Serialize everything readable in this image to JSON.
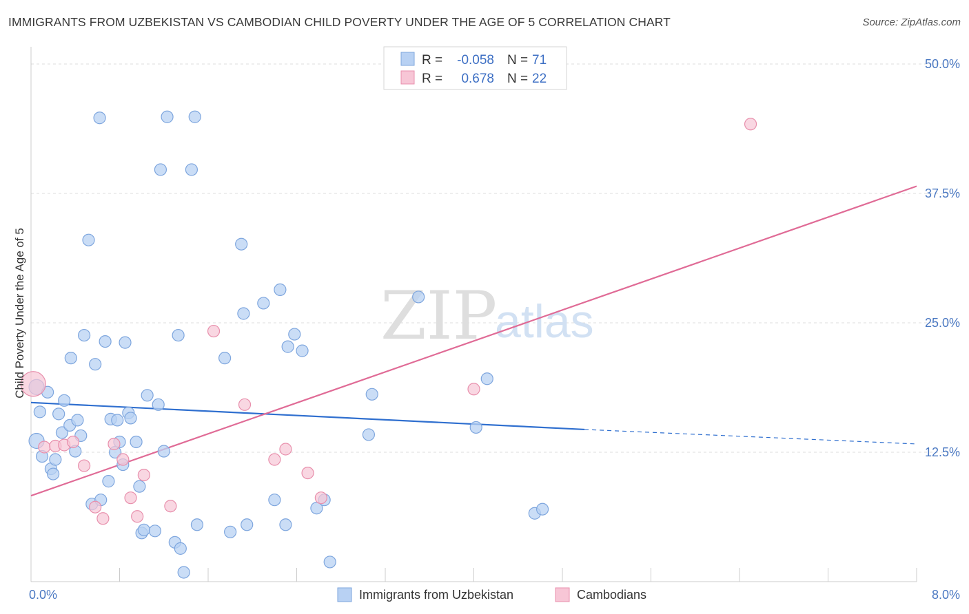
{
  "header": {
    "title": "IMMIGRANTS FROM UZBEKISTAN VS CAMBODIAN CHILD POVERTY UNDER THE AGE OF 5 CORRELATION CHART",
    "source": "Source: ZipAtlas.com"
  },
  "watermark": {
    "zip": "ZIP",
    "atlas": "atlas"
  },
  "colors": {
    "blue_fill": "#b8d1f3",
    "blue_stroke": "#7ea6de",
    "blue_line": "#2f6fcf",
    "pink_fill": "#f7c6d6",
    "pink_stroke": "#e88fac",
    "pink_line": "#e06b96"
  },
  "legend": {
    "r_label": "R =",
    "n_label": "N =",
    "rows": [
      {
        "r": "-0.058",
        "n": "71"
      },
      {
        "r": "0.678",
        "n": "22"
      }
    ]
  },
  "chart_data": {
    "type": "scatter",
    "title": "IMMIGRANTS FROM UZBEKISTAN VS CAMBODIAN CHILD POVERTY UNDER THE AGE OF 5 CORRELATION CHART",
    "xlabel": "",
    "ylabel": "Child Poverty Under the Age of 5",
    "xlim": [
      0,
      8
    ],
    "ylim": [
      0,
      51
    ],
    "x_tick_labels": [
      {
        "value": 0,
        "label": "0.0%"
      },
      {
        "value": 8,
        "label": "8.0%"
      }
    ],
    "x_minor_ticks": [
      0.8,
      1.6,
      2.4,
      3.2,
      4.0,
      4.8,
      5.6,
      6.4,
      7.2,
      8.0
    ],
    "y_ticks": [
      {
        "value": 12.5,
        "label": "12.5%"
      },
      {
        "value": 25.0,
        "label": "25.0%"
      },
      {
        "value": 37.5,
        "label": "37.5%"
      },
      {
        "value": 50.0,
        "label": "50.0%"
      }
    ],
    "series": [
      {
        "name": "Immigrants from Uzbekistan",
        "r": -0.058,
        "n": 71,
        "points": [
          [
            0.05,
            18.8
          ],
          [
            0.05,
            13.6
          ],
          [
            0.08,
            16.4
          ],
          [
            0.1,
            12.1
          ],
          [
            0.15,
            18.3
          ],
          [
            0.18,
            10.9
          ],
          [
            0.2,
            10.4
          ],
          [
            0.22,
            11.8
          ],
          [
            0.25,
            16.2
          ],
          [
            0.28,
            14.4
          ],
          [
            0.3,
            17.5
          ],
          [
            0.35,
            15.1
          ],
          [
            0.36,
            21.6
          ],
          [
            0.4,
            12.6
          ],
          [
            0.42,
            15.6
          ],
          [
            0.45,
            14.1
          ],
          [
            0.48,
            23.8
          ],
          [
            0.52,
            33.0
          ],
          [
            0.55,
            7.5
          ],
          [
            0.58,
            21.0
          ],
          [
            0.62,
            44.8
          ],
          [
            0.63,
            7.9
          ],
          [
            0.67,
            23.2
          ],
          [
            0.7,
            9.7
          ],
          [
            0.72,
            15.7
          ],
          [
            0.76,
            12.5
          ],
          [
            0.78,
            15.6
          ],
          [
            0.8,
            13.5
          ],
          [
            0.83,
            11.3
          ],
          [
            0.85,
            23.1
          ],
          [
            0.88,
            16.3
          ],
          [
            0.9,
            15.8
          ],
          [
            0.95,
            13.5
          ],
          [
            0.98,
            9.2
          ],
          [
            1.0,
            4.7
          ],
          [
            1.02,
            5.0
          ],
          [
            1.05,
            18.0
          ],
          [
            1.12,
            4.9
          ],
          [
            1.15,
            17.1
          ],
          [
            1.17,
            39.8
          ],
          [
            1.2,
            12.6
          ],
          [
            1.23,
            44.9
          ],
          [
            1.3,
            3.8
          ],
          [
            1.33,
            23.8
          ],
          [
            1.35,
            3.2
          ],
          [
            1.38,
            0.9
          ],
          [
            1.45,
            39.8
          ],
          [
            1.48,
            44.9
          ],
          [
            1.5,
            5.5
          ],
          [
            1.75,
            21.6
          ],
          [
            1.8,
            4.8
          ],
          [
            1.9,
            32.6
          ],
          [
            1.92,
            25.9
          ],
          [
            1.95,
            5.5
          ],
          [
            2.1,
            26.9
          ],
          [
            2.2,
            7.9
          ],
          [
            2.25,
            28.2
          ],
          [
            2.3,
            5.5
          ],
          [
            2.32,
            22.7
          ],
          [
            2.38,
            23.9
          ],
          [
            2.45,
            22.3
          ],
          [
            2.58,
            7.1
          ],
          [
            2.65,
            7.9
          ],
          [
            2.7,
            1.9
          ],
          [
            3.05,
            14.2
          ],
          [
            3.08,
            18.1
          ],
          [
            3.5,
            27.5
          ],
          [
            4.02,
            14.9
          ],
          [
            4.12,
            19.6
          ],
          [
            4.55,
            6.6
          ],
          [
            4.62,
            7.0
          ]
        ],
        "trend": {
          "x0": 0.0,
          "y0": 17.3,
          "x1": 5.0,
          "y1": 14.7,
          "dash_to_x": 8.0,
          "dash_to_y": 13.3
        }
      },
      {
        "name": "Cambodians",
        "r": 0.678,
        "n": 22,
        "points": [
          [
            0.02,
            19.1
          ],
          [
            0.12,
            13.0
          ],
          [
            0.22,
            13.1
          ],
          [
            0.3,
            13.2
          ],
          [
            0.38,
            13.5
          ],
          [
            0.48,
            11.2
          ],
          [
            0.58,
            7.2
          ],
          [
            0.65,
            6.1
          ],
          [
            0.75,
            13.3
          ],
          [
            0.83,
            11.8
          ],
          [
            0.9,
            8.1
          ],
          [
            0.96,
            6.3
          ],
          [
            1.02,
            10.3
          ],
          [
            1.26,
            7.3
          ],
          [
            1.65,
            24.2
          ],
          [
            1.93,
            17.1
          ],
          [
            2.2,
            11.8
          ],
          [
            2.3,
            12.8
          ],
          [
            2.5,
            10.5
          ],
          [
            2.62,
            8.1
          ],
          [
            4.0,
            18.6
          ],
          [
            6.5,
            44.2
          ]
        ],
        "trend": {
          "x0": 0.0,
          "y0": 8.3,
          "x1": 8.0,
          "y1": 38.2
        }
      }
    ],
    "legend": [
      "Immigrants from Uzbekistan",
      "Cambodians"
    ],
    "grid": true
  }
}
